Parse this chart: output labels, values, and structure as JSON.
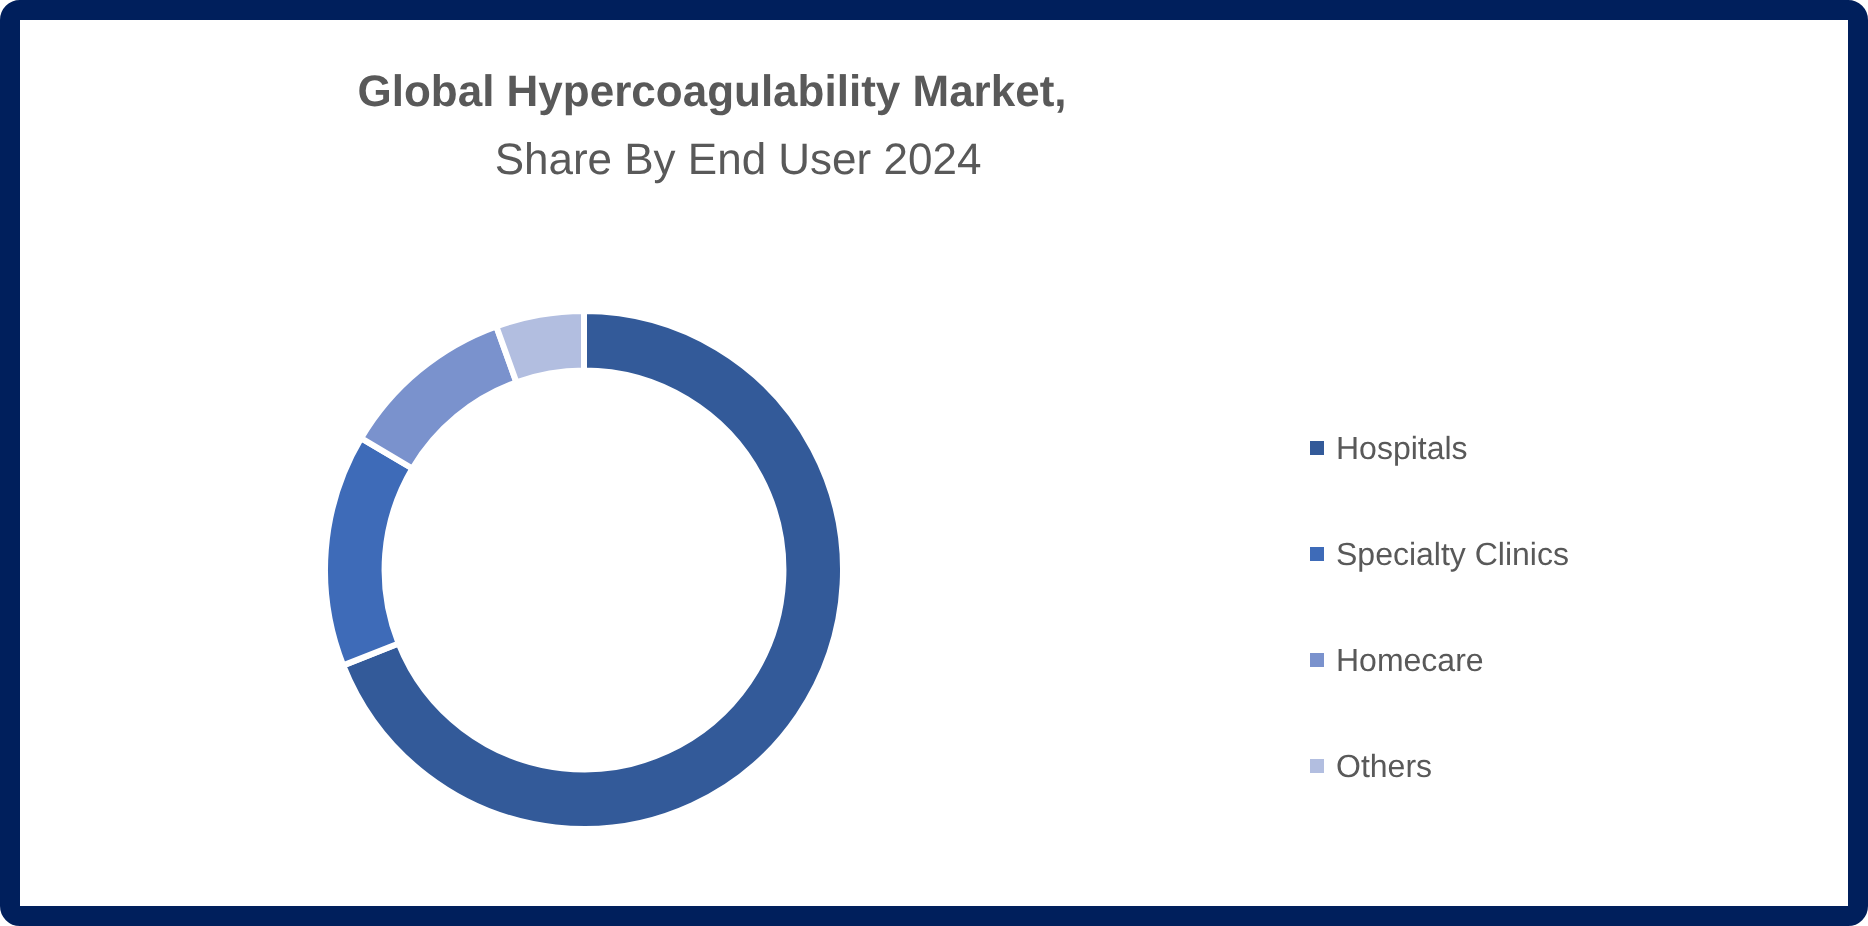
{
  "chart_data": {
    "type": "donut",
    "title": "Global Hypercoagulability Market,",
    "subtitle": "Share By End User 2024",
    "categories": [
      "Hospitals",
      "Specialty Clinics",
      "Homecare",
      "Others"
    ],
    "values": [
      69,
      14.5,
      11,
      5.5
    ],
    "colors": [
      "#335a99",
      "#3e6bb8",
      "#7a92cd",
      "#b2bee0"
    ],
    "legend": "right"
  }
}
